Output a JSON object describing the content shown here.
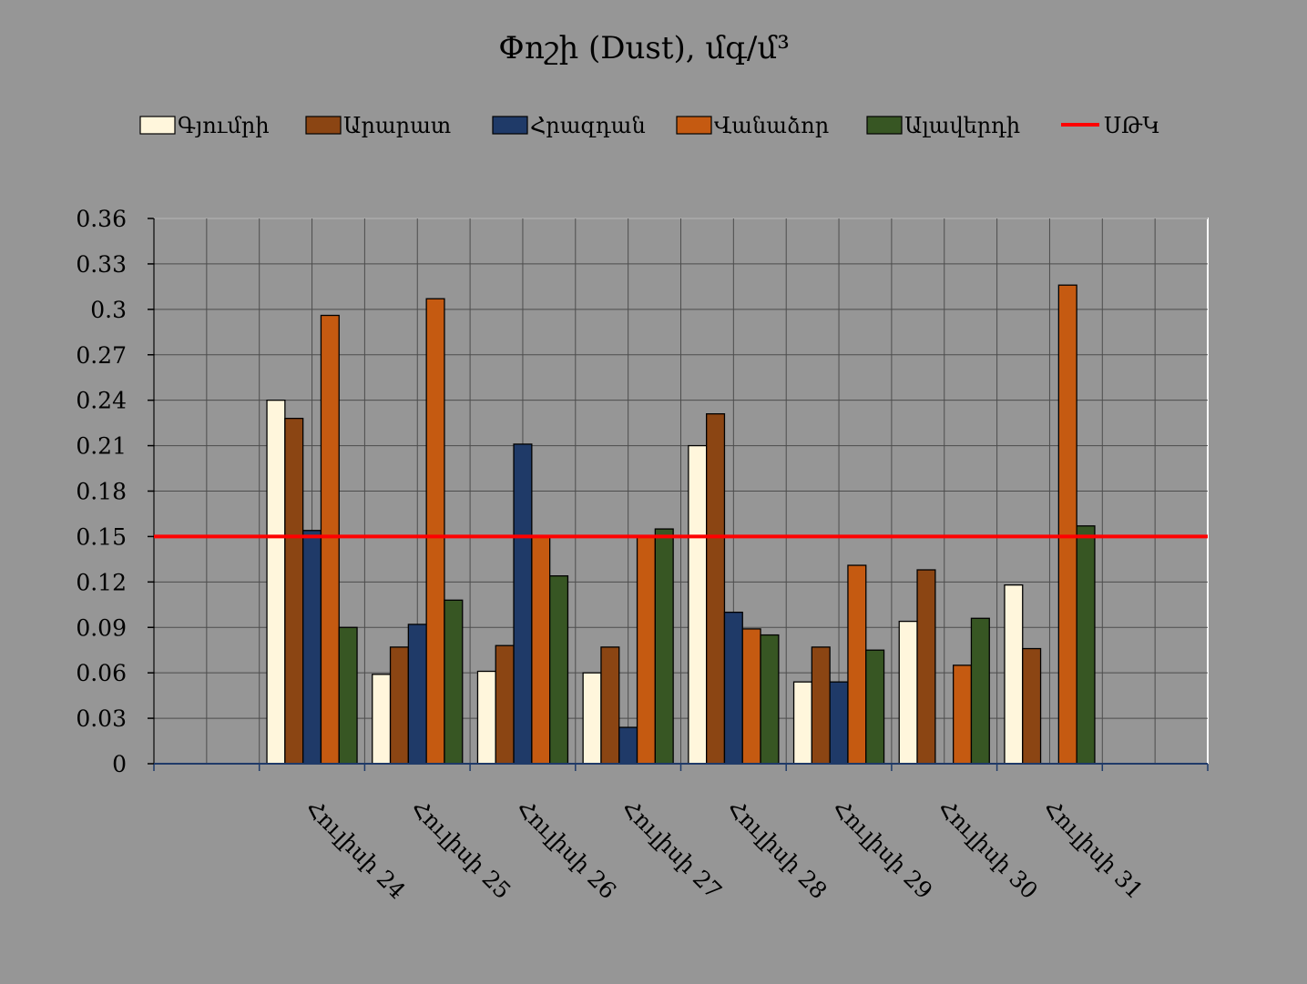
{
  "chart_data": {
    "type": "bar",
    "title": "Փոշի (Dust), մգ/մ³",
    "xlabel": "",
    "ylabel": "",
    "ylim": [
      0,
      0.36
    ],
    "yticks": [
      "0",
      "0.03",
      "0.06",
      "0.09",
      "0.12",
      "0.15",
      "0.18",
      "0.21",
      "0.24",
      "0.27",
      "0.3",
      "0.33",
      "0.36"
    ],
    "grid": true,
    "legend_position": "top",
    "categories": [
      "",
      "Հուլիսի 24",
      "Հուլիսի 25",
      "Հուլիսի 26",
      "Հուլիսի 27",
      "Հուլիսի 28",
      "Հուլիսի 29",
      "Հուլիսի 30",
      "Հուլիսի 31",
      ""
    ],
    "series": [
      {
        "name": "Գյումրի",
        "color": "#FFF6DC",
        "values": [
          null,
          0.24,
          0.059,
          0.061,
          0.06,
          0.21,
          0.054,
          0.094,
          0.118,
          null
        ]
      },
      {
        "name": "Արարատ",
        "color": "#8B4513",
        "values": [
          null,
          0.228,
          0.077,
          0.078,
          0.077,
          0.231,
          0.077,
          0.128,
          0.076,
          null
        ]
      },
      {
        "name": "Հրազդան",
        "color": "#1F3A68",
        "values": [
          null,
          0.154,
          0.092,
          0.211,
          0.024,
          0.1,
          0.054,
          null,
          null,
          null
        ]
      },
      {
        "name": "Վանաձոր",
        "color": "#C55A11",
        "values": [
          null,
          0.296,
          0.307,
          0.15,
          0.15,
          0.089,
          0.131,
          0.065,
          0.316,
          null
        ]
      },
      {
        "name": "Ալավերդի",
        "color": "#375623",
        "values": [
          null,
          0.09,
          0.108,
          0.124,
          0.155,
          0.085,
          0.075,
          0.096,
          0.157,
          null
        ]
      }
    ],
    "reference_line": {
      "name": "ՍԹԿ",
      "value": 0.15,
      "color": "#FF0000"
    }
  }
}
